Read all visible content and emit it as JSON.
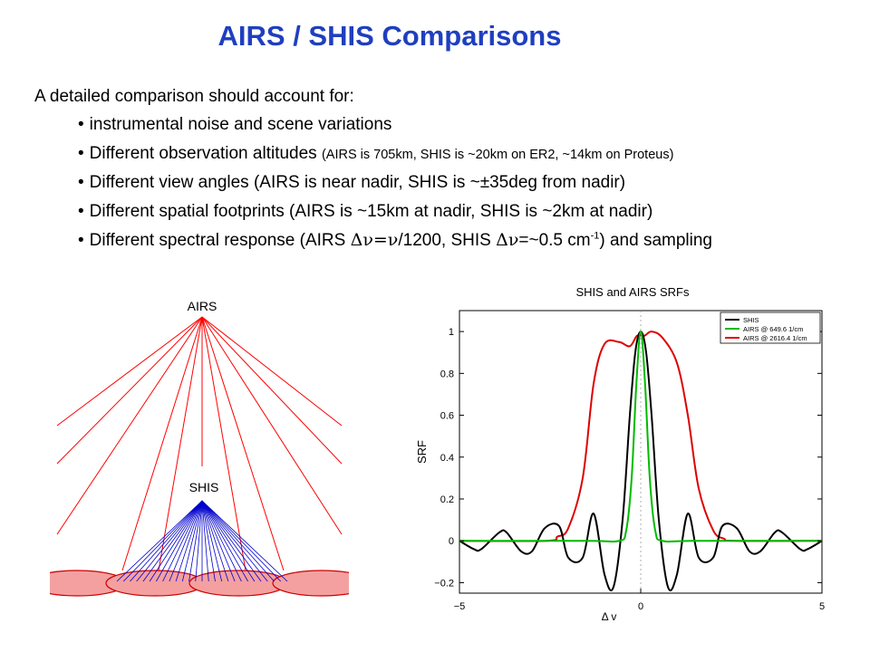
{
  "title": "AIRS / SHIS Comparisons",
  "intro": "A detailed comparison should account for:",
  "bullets": [
    {
      "text": "instrumental noise and scene variations"
    },
    {
      "text": "Different observation altitudes",
      "note": "(AIRS is 705km, SHIS is ~20km on ER2, ~14km on Proteus)"
    },
    {
      "text": "Different view angles (AIRS is near nadir, SHIS is ~±35deg from nadir)"
    },
    {
      "text": "Different spatial footprints (AIRS is ~15km at nadir, SHIS is ~2km at nadir)"
    },
    {
      "p1": "Different spectral response (AIRS ",
      "delta1": "Δν=ν",
      "p2": "/1200,  SHIS ",
      "delta2": "Δν",
      "p3": "=~0.5 cm",
      "sup": "-1",
      "p4": ") and sampling"
    }
  ],
  "geometry": {
    "airs_label": "AIRS",
    "shis_label": "SHIS",
    "colors": {
      "airs_rays": "#ff0000",
      "shis_rays": "#0000cc",
      "footprint_fill": "#f4a0a0",
      "footprint_edge": "#cc0000"
    }
  },
  "chart_data": {
    "type": "line",
    "title": "SHIS and AIRS SRFs",
    "xlabel": "Δ v",
    "ylabel": "SRF",
    "xlim": [
      -5,
      5
    ],
    "ylim": [
      -0.25,
      1.1
    ],
    "xticks": [
      -5,
      0,
      5
    ],
    "yticks": [
      -0.2,
      0,
      0.2,
      0.4,
      0.6,
      0.8,
      1
    ],
    "ytick_labels": [
      "−0.2",
      "0",
      "0.2",
      "0.4",
      "0.6",
      "0.8",
      "1"
    ],
    "xtick_labels": [
      "−5",
      "0",
      "5"
    ],
    "grid": "x=0 dotted",
    "legend_position": "top-right",
    "series": [
      {
        "name": "SHIS",
        "color": "#000000",
        "x": [
          -5,
          -4.6,
          -4.4,
          -3.9,
          -3.7,
          -3.3,
          -3.0,
          -2.65,
          -2.25,
          -2.0,
          -1.6,
          -1.3,
          -1.0,
          -0.75,
          -0.5,
          -0.3,
          -0.15,
          0,
          0.15,
          0.3,
          0.5,
          0.75,
          1.0,
          1.3,
          1.6,
          2.0,
          2.25,
          2.65,
          3.0,
          3.3,
          3.7,
          3.9,
          4.4,
          4.6,
          5
        ],
        "y": [
          0,
          -0.04,
          -0.04,
          0.04,
          0.04,
          -0.05,
          -0.05,
          0.06,
          0.07,
          -0.08,
          -0.08,
          0.13,
          -0.16,
          -0.22,
          0.1,
          0.6,
          0.9,
          1.0,
          0.9,
          0.6,
          0.1,
          -0.22,
          -0.16,
          0.13,
          -0.08,
          -0.08,
          0.07,
          0.06,
          -0.05,
          -0.05,
          0.04,
          0.04,
          -0.04,
          -0.04,
          0
        ]
      },
      {
        "name": "AIRS @ 649.6 1/cm",
        "color": "#00bb00",
        "x": [
          -5,
          -1.5,
          -0.6,
          -0.4,
          -0.25,
          -0.12,
          0,
          0.12,
          0.25,
          0.4,
          0.6,
          1.5,
          5
        ],
        "y": [
          0,
          0,
          0.0,
          0.05,
          0.3,
          0.75,
          1.0,
          0.75,
          0.3,
          0.05,
          0.0,
          0,
          0
        ]
      },
      {
        "name": "AIRS @ 2616.4 1/cm",
        "color": "#dd0000",
        "x": [
          -5,
          -2.6,
          -2.3,
          -2.0,
          -1.6,
          -1.3,
          -1.0,
          -0.6,
          -0.3,
          -0.1,
          0.1,
          0.3,
          0.6,
          1.0,
          1.3,
          1.6,
          2.0,
          2.3,
          2.6,
          5
        ],
        "y": [
          0,
          0,
          0.02,
          0.06,
          0.3,
          0.75,
          0.94,
          0.95,
          0.93,
          0.98,
          0.98,
          1.0,
          0.97,
          0.85,
          0.6,
          0.25,
          0.05,
          0.01,
          0,
          0
        ]
      }
    ]
  }
}
